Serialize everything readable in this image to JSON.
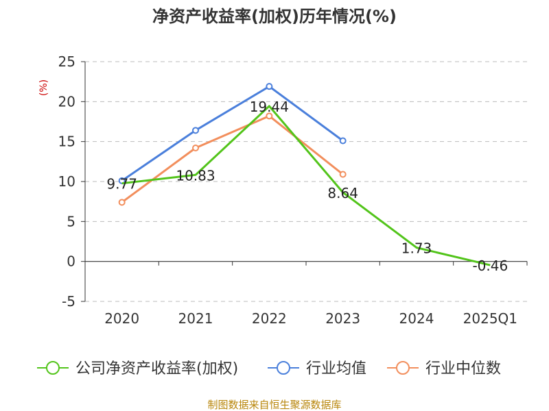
{
  "source_text": "制图数据来自恒生聚源数据库",
  "colors": {
    "company": "#52C41A",
    "industry_avg": "#4A7FDB",
    "industry_median": "#F28E5C",
    "unit": "#CC0000",
    "source": "#B8860B",
    "grid": "#BBBBBB",
    "axis": "#333333"
  },
  "chart_data": {
    "type": "line",
    "title": "净资产收益率(加权)历年情况(%)",
    "ylabel": "(%)",
    "xlabel": "",
    "categories": [
      "2020",
      "2021",
      "2022",
      "2023",
      "2024",
      "2025Q1"
    ],
    "ylim": [
      -5,
      25
    ],
    "yticks": [
      25,
      20,
      15,
      10,
      5,
      0,
      -5
    ],
    "grid": true,
    "legend_position": "bottom",
    "series": [
      {
        "name": "公司净资产收益率(加权)",
        "color": "#52C41A",
        "values": [
          9.77,
          10.83,
          19.44,
          8.64,
          1.73,
          -0.46
        ],
        "labels": [
          "9.77",
          "10.83",
          "19.44",
          "8.64",
          "1.73",
          "-0.46"
        ],
        "markers": false
      },
      {
        "name": "行业均值",
        "color": "#4A7FDB",
        "values": [
          10.1,
          16.4,
          21.9,
          15.1,
          null,
          null
        ],
        "markers": true
      },
      {
        "name": "行业中位数",
        "color": "#F28E5C",
        "values": [
          7.4,
          14.2,
          18.2,
          10.9,
          null,
          null
        ],
        "markers": true
      }
    ]
  }
}
